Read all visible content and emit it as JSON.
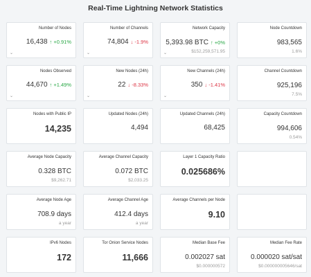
{
  "title": "Real-Time Lightning Network Statistics",
  "caret_glyph": "⌄",
  "cards": [
    {
      "title": "Number of Nodes",
      "value": "16,438",
      "delta": "↑ +0.91%",
      "trend": "up",
      "caret": true
    },
    {
      "title": "Number of Channels",
      "value": "74,804",
      "delta": "↓ -1.9%",
      "trend": "down",
      "caret": true
    },
    {
      "title": "Network Capacity",
      "value": "5,393.98 BTC",
      "delta": "↑ +0%",
      "trend": "up",
      "sub": "$152,259,571.95",
      "caret": true
    },
    {
      "title": "Node Countdown",
      "value": "983,565",
      "sub": "1.6%"
    },
    {
      "title": "Nodes Observed",
      "value": "44,670",
      "delta": "↑ +1.49%",
      "trend": "up",
      "caret": true
    },
    {
      "title": "New Nodes (24h)",
      "value": "22",
      "delta": "↓ -8.33%",
      "trend": "down",
      "caret": true
    },
    {
      "title": "New Channels (24h)",
      "value": "350",
      "delta": "↓ -1.41%",
      "trend": "down",
      "caret": true
    },
    {
      "title": "Channel Countdown",
      "value": "925,196",
      "sub": "7.5%"
    },
    {
      "title": "Nodes with Public IP",
      "value": "14,235",
      "big": true
    },
    {
      "title": "Updated Nodes (24h)",
      "value": "4,494"
    },
    {
      "title": "Updated Channels (24h)",
      "value": "68,425"
    },
    {
      "title": "Capacity Countdown",
      "value": "994,606",
      "sub": "0.54%"
    },
    {
      "title": "Average Node Capacity",
      "value": "0.328 BTC",
      "sub": "$9,262.71"
    },
    {
      "title": "Average Channel Capacity",
      "value": "0.072 BTC",
      "sub": "$2,033.25"
    },
    {
      "title": "Layer 1 Capacity Ratio",
      "value": "0.025686%",
      "big": true
    },
    {
      "title": ""
    },
    {
      "title": "Average Node Age",
      "value": "708.9 days",
      "sub": "a year"
    },
    {
      "title": "Average Channel Age",
      "value": "412.4 days",
      "sub": "a year"
    },
    {
      "title": "Average Channels per Node",
      "value": "9.10",
      "big": true
    },
    {
      "title": ""
    },
    {
      "title": "IPv6 Nodes",
      "value": "172",
      "big": true
    },
    {
      "title": "Tor Onion Service Nodes",
      "value": "11,666",
      "big": true
    },
    {
      "title": "Median Base Fee",
      "value": "0.002027 sat",
      "sub": "$0.000000572"
    },
    {
      "title": "Median Fee Rate",
      "value": "0.000020 sat/sat",
      "sub": "$0.000000005646/sat"
    }
  ]
}
